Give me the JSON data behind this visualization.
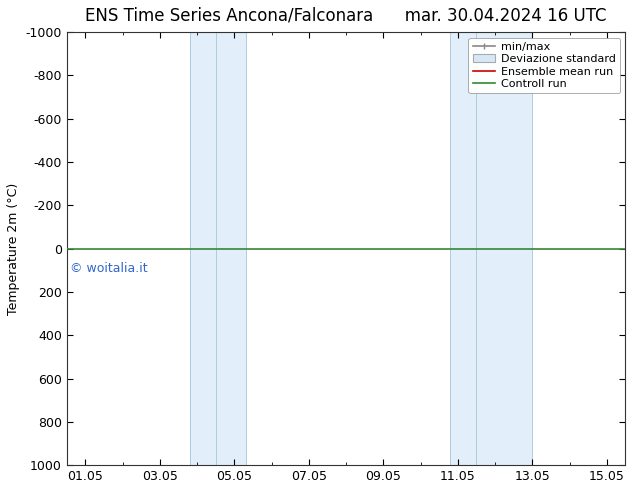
{
  "title": "ENS Time Series Ancona/Falconara      mar. 30.04.2024 16 UTC",
  "ylabel": "Temperature 2m (°C)",
  "watermark": "© woitalia.it",
  "xtick_labels": [
    "01.05",
    "03.05",
    "05.05",
    "07.05",
    "09.05",
    "11.05",
    "13.05",
    "15.05"
  ],
  "xtick_positions": [
    1,
    3,
    5,
    7,
    9,
    11,
    13,
    15
  ],
  "xlim": [
    0.5,
    15.5
  ],
  "ylim": [
    -1000,
    1000
  ],
  "y_inverted": true,
  "background_color": "#ffffff",
  "shaded_regions": [
    [
      3.8,
      4.5
    ],
    [
      4.5,
      5.3
    ],
    [
      10.8,
      11.5
    ],
    [
      11.5,
      13.0
    ]
  ],
  "shade_color": "#d6e8f7",
  "shade_alpha": 0.7,
  "shade_edge_color": "#b0ccdd",
  "green_line_color": "#338833",
  "red_line_color": "#cc0000",
  "legend_entries": [
    "min/max",
    "Deviazione standard",
    "Ensemble mean run",
    "Controll run"
  ],
  "legend_line_colors": [
    "#888888",
    "#cccccc",
    "#cc0000",
    "#338833"
  ],
  "title_fontsize": 12,
  "axis_label_fontsize": 9,
  "tick_fontsize": 9,
  "watermark_color": "#3366cc",
  "watermark_fontsize": 9,
  "legend_fontsize": 8
}
